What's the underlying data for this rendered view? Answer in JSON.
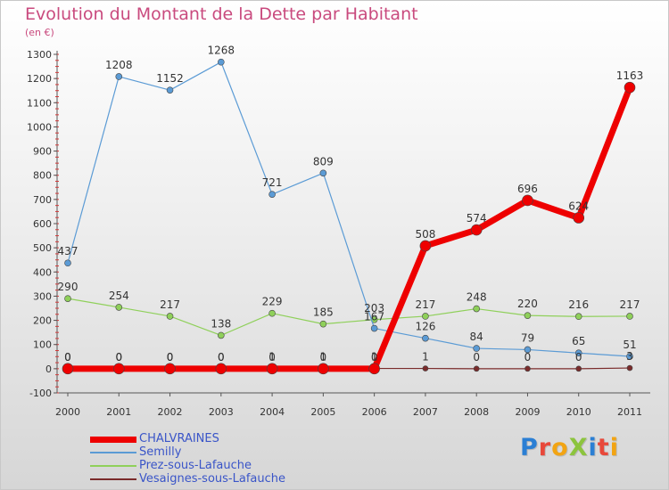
{
  "title": "Evolution du Montant de la Dette par Habitant",
  "subtitle": "(en €)",
  "logo": {
    "text": "ProXiti",
    "letters": [
      {
        "ch": "P",
        "color": "#2b7fd4"
      },
      {
        "ch": "r",
        "color": "#e8483a"
      },
      {
        "ch": "o",
        "color": "#f2a413"
      },
      {
        "ch": "X",
        "color": "#8cc43e"
      },
      {
        "ch": "i",
        "color": "#2b7fd4"
      },
      {
        "ch": "t",
        "color": "#e8483a"
      },
      {
        "ch": "i",
        "color": "#f2a413"
      }
    ]
  },
  "chart_data": {
    "type": "line",
    "x": [
      "2000",
      "2001",
      "2002",
      "2003",
      "2004",
      "2005",
      "2006",
      "2007",
      "2008",
      "2009",
      "2010",
      "2011"
    ],
    "ylim": [
      -100,
      1300
    ],
    "yticks": [
      -100,
      0,
      100,
      200,
      300,
      400,
      500,
      600,
      700,
      800,
      900,
      1000,
      1100,
      1200,
      1300
    ],
    "grid": false,
    "legend_position": "bottom-left",
    "series": [
      {
        "name": "Vesaignes-sous-Lafauche",
        "color": "#7a2b2b",
        "line_width": 1.2,
        "marker_radius": 3,
        "values": [
          0,
          0,
          0,
          0,
          1,
          1,
          1,
          1,
          0,
          0,
          0,
          3
        ],
        "labels": [
          "0",
          "0",
          "0",
          "0",
          "1",
          "1",
          "1",
          "1",
          "0",
          "0",
          "0",
          "3"
        ]
      },
      {
        "name": "Prez-sous-Lafauche",
        "color": "#8fd05a",
        "line_width": 1.2,
        "marker_radius": 3.5,
        "values": [
          290,
          254,
          217,
          138,
          229,
          185,
          203,
          217,
          248,
          220,
          216,
          217
        ],
        "labels": [
          "290",
          "254",
          "217",
          "138",
          "229",
          "185",
          "203",
          "217",
          "248",
          "220",
          "216",
          "217"
        ]
      },
      {
        "name": "Semilly",
        "color": "#5b9bd5",
        "line_width": 1.2,
        "marker_radius": 3.5,
        "values": [
          437,
          1208,
          1152,
          1268,
          721,
          809,
          167,
          126,
          84,
          79,
          65,
          51
        ],
        "labels": [
          "437",
          "1208",
          "1152",
          "1268",
          "721",
          "809",
          "167",
          "126",
          "84",
          "79",
          "65",
          "51"
        ]
      },
      {
        "name": "CHALVRAINES",
        "color": "#ee0000",
        "line_width": 7,
        "marker_radius": 6,
        "values": [
          0,
          0,
          0,
          0,
          0,
          0,
          0,
          508,
          574,
          696,
          624,
          1163
        ],
        "labels": [
          "0",
          "0",
          "0",
          "0",
          "0",
          "0",
          "0",
          "508",
          "574",
          "696",
          "624",
          "1163"
        ]
      }
    ]
  },
  "legend": [
    {
      "name": "CHALVRAINES",
      "color": "#ee0000",
      "thickness": 7
    },
    {
      "name": "Semilly",
      "color": "#5b9bd5",
      "thickness": 2
    },
    {
      "name": "Prez-sous-Lafauche",
      "color": "#8fd05a",
      "thickness": 2
    },
    {
      "name": "Vesaignes-sous-Lafauche",
      "color": "#7a2b2b",
      "thickness": 2
    }
  ]
}
